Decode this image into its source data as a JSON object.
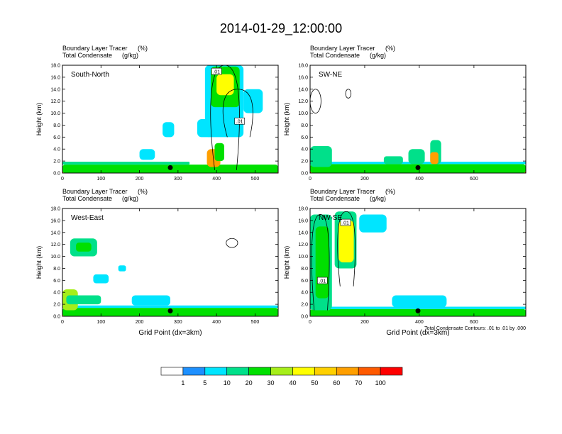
{
  "title": "2014-01-29_12:00:00",
  "panels": [
    {
      "id": "south-north",
      "name": "South-North",
      "subtitle_1": "Boundary Layer Tracer",
      "subtitle_1_unit": "(%)",
      "subtitle_2": "Total Condensate",
      "subtitle_2_unit": "(g/kg)",
      "xlim": [
        0,
        560
      ],
      "xticks": [
        "0",
        "100",
        "200",
        "300",
        "400",
        "500"
      ],
      "xtick_values": [
        0,
        100,
        200,
        300,
        400,
        500
      ],
      "ylabel": "Height (km)",
      "ylim": [
        0,
        18
      ],
      "yticks": [
        "0.0",
        "2.0",
        "4.0",
        "6.0",
        "8.0",
        "10.0",
        "12.0",
        "14.0",
        "16.0",
        "18.0"
      ],
      "marker_x": 280,
      "contour_label_1": ".01",
      "contour_label_2": ".01",
      "contour_label_1_pos": [
        400,
        16.8
      ],
      "contour_label_2_pos": [
        460,
        8.5
      ],
      "xlabel": ""
    },
    {
      "id": "sw-ne",
      "name": "SW-NE",
      "subtitle_1": "Boundary Layer Tracer",
      "subtitle_1_unit": "(%)",
      "subtitle_2": "Total Condensate",
      "subtitle_2_unit": "(g/kg)",
      "xlim": [
        0,
        790
      ],
      "xticks": [
        "0",
        "200",
        "400",
        "600"
      ],
      "xtick_values": [
        0,
        200,
        400,
        600
      ],
      "ylabel": "Height (km)",
      "ylim": [
        0,
        18
      ],
      "yticks": [
        "0.0",
        "2.0",
        "4.0",
        "6.0",
        "8.0",
        "10.0",
        "12.0",
        "14.0",
        "16.0",
        "18.0"
      ],
      "marker_x": 395,
      "contour_label_1": "",
      "contour_label_2": "",
      "contour_label_1_pos": [
        0,
        0
      ],
      "contour_label_2_pos": [
        0,
        0
      ],
      "xlabel": ""
    },
    {
      "id": "west-east",
      "name": "West-East",
      "subtitle_1": "Boundary Layer Tracer",
      "subtitle_1_unit": "(%)",
      "subtitle_2": "Total Condensate",
      "subtitle_2_unit": "(g/kg)",
      "xlim": [
        0,
        560
      ],
      "xticks": [
        "0",
        "100",
        "200",
        "300",
        "400",
        "500"
      ],
      "xtick_values": [
        0,
        100,
        200,
        300,
        400,
        500
      ],
      "ylabel": "Height (km)",
      "ylim": [
        0,
        18
      ],
      "yticks": [
        "0.0",
        "2.0",
        "4.0",
        "6.0",
        "8.0",
        "10.0",
        "12.0",
        "14.0",
        "16.0",
        "18.0"
      ],
      "marker_x": 280,
      "contour_label_1": "",
      "contour_label_2": "",
      "contour_label_1_pos": [
        0,
        0
      ],
      "contour_label_2_pos": [
        0,
        0
      ],
      "xlabel": "Grid Point (dx=3km)"
    },
    {
      "id": "nw-se",
      "name": "NW-SE",
      "subtitle_1": "Boundary Layer Tracer",
      "subtitle_1_unit": "(%)",
      "subtitle_2": "Total Condensate",
      "subtitle_2_unit": "(g/kg)",
      "xlim": [
        0,
        790
      ],
      "xticks": [
        "0",
        "200",
        "400",
        "600"
      ],
      "xtick_values": [
        0,
        200,
        400,
        600
      ],
      "ylabel": "Height (km)",
      "ylim": [
        0,
        18
      ],
      "yticks": [
        "0.0",
        "2.0",
        "4.0",
        "6.0",
        "8.0",
        "10.0",
        "12.0",
        "14.0",
        "16.0",
        "18.0"
      ],
      "marker_x": 395,
      "contour_label_1": ".01",
      "contour_label_2": ".01",
      "contour_label_1_pos": [
        130,
        15.5
      ],
      "contour_label_2_pos": [
        45,
        5.8
      ],
      "xlabel": "Grid Point (dx=3km)"
    }
  ],
  "contour_note": "Total Condensate Contours: .01 to .01 by .000",
  "colorbar": {
    "levels": [
      "1",
      "5",
      "10",
      "20",
      "30",
      "40",
      "50",
      "60",
      "70",
      "100"
    ],
    "colors": [
      "#ffffff",
      "#1e90ff",
      "#00e5ff",
      "#00e08a",
      "#00e000",
      "#a6ee1a",
      "#ffff00",
      "#ffd000",
      "#ff9f00",
      "#ff5a00",
      "#ff0000"
    ]
  },
  "chart_data": {
    "type": "heatmap",
    "title": "2014-01-29_12:00:00",
    "variable": "Boundary Layer Tracer (%)",
    "overlay": "Total Condensate (g/kg) contours",
    "ylabel": "Height (km)",
    "xlabel": "Grid Point (dx=3km)",
    "ylim": [
      0,
      18
    ],
    "color_levels": [
      1,
      5,
      10,
      20,
      30,
      40,
      50,
      60,
      70,
      100
    ],
    "panels": [
      {
        "name": "South-North",
        "xlim": [
          0,
          560
        ],
        "marker_x": 280,
        "blobs": [
          {
            "x0": 0,
            "x1": 560,
            "y0": 0,
            "y1": 0.7,
            "level": 10
          },
          {
            "x0": 0,
            "x1": 560,
            "y0": 0,
            "y1": 1.1,
            "level": 7
          },
          {
            "x0": 0,
            "x1": 560,
            "y0": 0,
            "y1": 1.4,
            "level": 4
          },
          {
            "x0": 0,
            "x1": 330,
            "y0": 1.4,
            "y1": 1.9,
            "level": 3
          },
          {
            "x0": 375,
            "x1": 410,
            "y0": 1,
            "y1": 4,
            "level": 8
          },
          {
            "x0": 395,
            "x1": 420,
            "y0": 2,
            "y1": 5,
            "level": 4
          },
          {
            "x0": 370,
            "x1": 470,
            "y0": 6,
            "y1": 18,
            "level": 2
          },
          {
            "x0": 385,
            "x1": 460,
            "y0": 11,
            "y1": 17.8,
            "level": 4
          },
          {
            "x0": 400,
            "x1": 445,
            "y0": 13,
            "y1": 16.5,
            "level": 6
          },
          {
            "x0": 350,
            "x1": 390,
            "y0": 6,
            "y1": 9,
            "level": 2
          },
          {
            "x0": 260,
            "x1": 290,
            "y0": 6,
            "y1": 8.5,
            "level": 2
          },
          {
            "x0": 470,
            "x1": 520,
            "y0": 10,
            "y1": 14,
            "level": 2
          },
          {
            "x0": 200,
            "x1": 240,
            "y0": 2.2,
            "y1": 4,
            "level": 2
          }
        ],
        "contours": [
          {
            "shape": "column",
            "x0": 378,
            "x1": 465,
            "y0": 0.5,
            "y1": 18
          },
          {
            "shape": "anvil",
            "x0": 410,
            "x1": 500,
            "y0": 6,
            "y1": 14
          }
        ]
      },
      {
        "name": "SW-NE",
        "xlim": [
          0,
          790
        ],
        "marker_x": 395,
        "blobs": [
          {
            "x0": 0,
            "x1": 790,
            "y0": 0,
            "y1": 0.7,
            "level": 10
          },
          {
            "x0": 0,
            "x1": 790,
            "y0": 0,
            "y1": 1.1,
            "level": 7
          },
          {
            "x0": 0,
            "x1": 790,
            "y0": 0,
            "y1": 1.5,
            "level": 4
          },
          {
            "x0": 0,
            "x1": 790,
            "y0": 1.5,
            "y1": 1.9,
            "level": 2
          },
          {
            "x0": 0,
            "x1": 80,
            "y0": 1,
            "y1": 4.5,
            "level": 3
          },
          {
            "x0": 270,
            "x1": 340,
            "y0": 1.5,
            "y1": 2.8,
            "level": 3
          },
          {
            "x0": 360,
            "x1": 420,
            "y0": 1.5,
            "y1": 4,
            "level": 3
          },
          {
            "x0": 440,
            "x1": 480,
            "y0": 1.5,
            "y1": 5.5,
            "level": 3
          },
          {
            "x0": 440,
            "x1": 470,
            "y0": 1.5,
            "y1": 3.5,
            "level": 8
          }
        ],
        "contours": [
          {
            "shape": "ring",
            "x0": 0,
            "x1": 40,
            "y0": 10,
            "y1": 14
          },
          {
            "shape": "ring",
            "x0": 130,
            "x1": 150,
            "y0": 12.5,
            "y1": 14
          }
        ]
      },
      {
        "name": "West-East",
        "xlim": [
          0,
          560
        ],
        "marker_x": 280,
        "blobs": [
          {
            "x0": 0,
            "x1": 560,
            "y0": 0,
            "y1": 0.6,
            "level": 10
          },
          {
            "x0": 0,
            "x1": 560,
            "y0": 0,
            "y1": 1.0,
            "level": 7
          },
          {
            "x0": 0,
            "x1": 560,
            "y0": 0,
            "y1": 1.4,
            "level": 4
          },
          {
            "x0": 0,
            "x1": 560,
            "y0": 1.4,
            "y1": 1.8,
            "level": 2
          },
          {
            "x0": 0,
            "x1": 40,
            "y0": 1,
            "y1": 4.5,
            "level": 5
          },
          {
            "x0": 10,
            "x1": 100,
            "y0": 2,
            "y1": 3.5,
            "level": 3
          },
          {
            "x0": 20,
            "x1": 90,
            "y0": 10,
            "y1": 13,
            "level": 3
          },
          {
            "x0": 35,
            "x1": 75,
            "y0": 10.8,
            "y1": 12.3,
            "level": 4
          },
          {
            "x0": 180,
            "x1": 280,
            "y0": 1.8,
            "y1": 3.5,
            "level": 2
          },
          {
            "x0": 80,
            "x1": 120,
            "y0": 5.5,
            "y1": 7,
            "level": 2
          },
          {
            "x0": 145,
            "x1": 165,
            "y0": 7.5,
            "y1": 8.5,
            "level": 2
          }
        ],
        "contours": [
          {
            "shape": "ring",
            "x0": 425,
            "x1": 455,
            "y0": 11.5,
            "y1": 13
          }
        ]
      },
      {
        "name": "NW-SE",
        "xlim": [
          0,
          790
        ],
        "marker_x": 395,
        "blobs": [
          {
            "x0": 0,
            "x1": 790,
            "y0": 0,
            "y1": 0.5,
            "level": 10
          },
          {
            "x0": 0,
            "x1": 790,
            "y0": 0,
            "y1": 0.9,
            "level": 7
          },
          {
            "x0": 0,
            "x1": 790,
            "y0": 0,
            "y1": 1.2,
            "level": 4
          },
          {
            "x0": 0,
            "x1": 790,
            "y0": 1.2,
            "y1": 1.6,
            "level": 2
          },
          {
            "x0": 0,
            "x1": 80,
            "y0": 1,
            "y1": 17,
            "level": 3
          },
          {
            "x0": 20,
            "x1": 70,
            "y0": 3,
            "y1": 15,
            "level": 4
          },
          {
            "x0": 90,
            "x1": 170,
            "y0": 8,
            "y1": 17.5,
            "level": 3
          },
          {
            "x0": 105,
            "x1": 160,
            "y0": 9,
            "y1": 16,
            "level": 6
          },
          {
            "x0": 180,
            "x1": 280,
            "y0": 14,
            "y1": 17,
            "level": 2
          },
          {
            "x0": 300,
            "x1": 500,
            "y0": 1.5,
            "y1": 3.5,
            "level": 2
          }
        ],
        "contours": [
          {
            "shape": "column",
            "x0": 0,
            "x1": 75,
            "y0": 1,
            "y1": 17
          },
          {
            "shape": "column",
            "x0": 95,
            "x1": 170,
            "y0": 5,
            "y1": 17.5
          }
        ]
      }
    ]
  }
}
